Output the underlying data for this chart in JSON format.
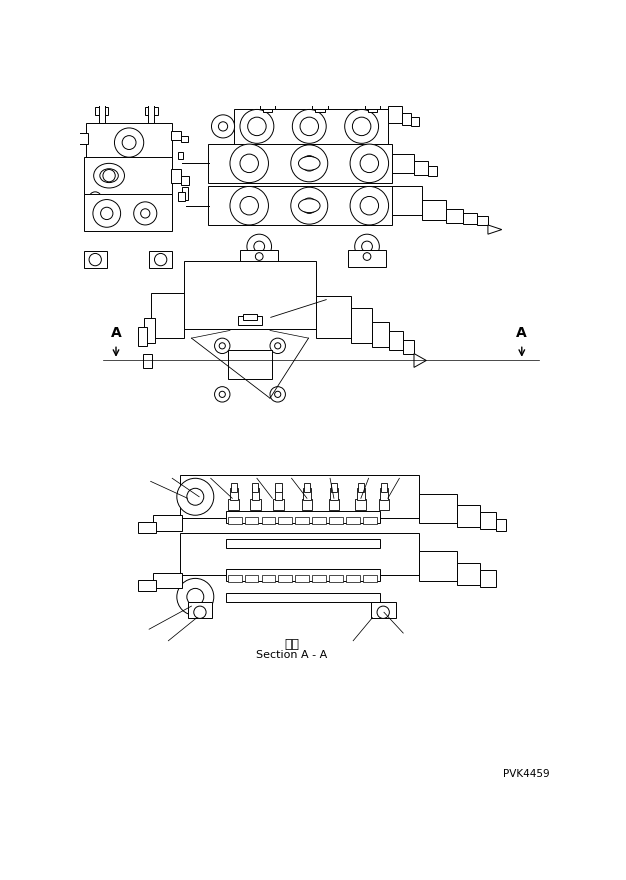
{
  "bg_color": "#ffffff",
  "line_color": "#000000",
  "fig_width": 6.26,
  "fig_height": 8.8,
  "dpi": 100,
  "part_number": "PVK4459",
  "section_label_jp": "断面",
  "section_label_en": "Section A - A",
  "section_arrow_label": "A"
}
